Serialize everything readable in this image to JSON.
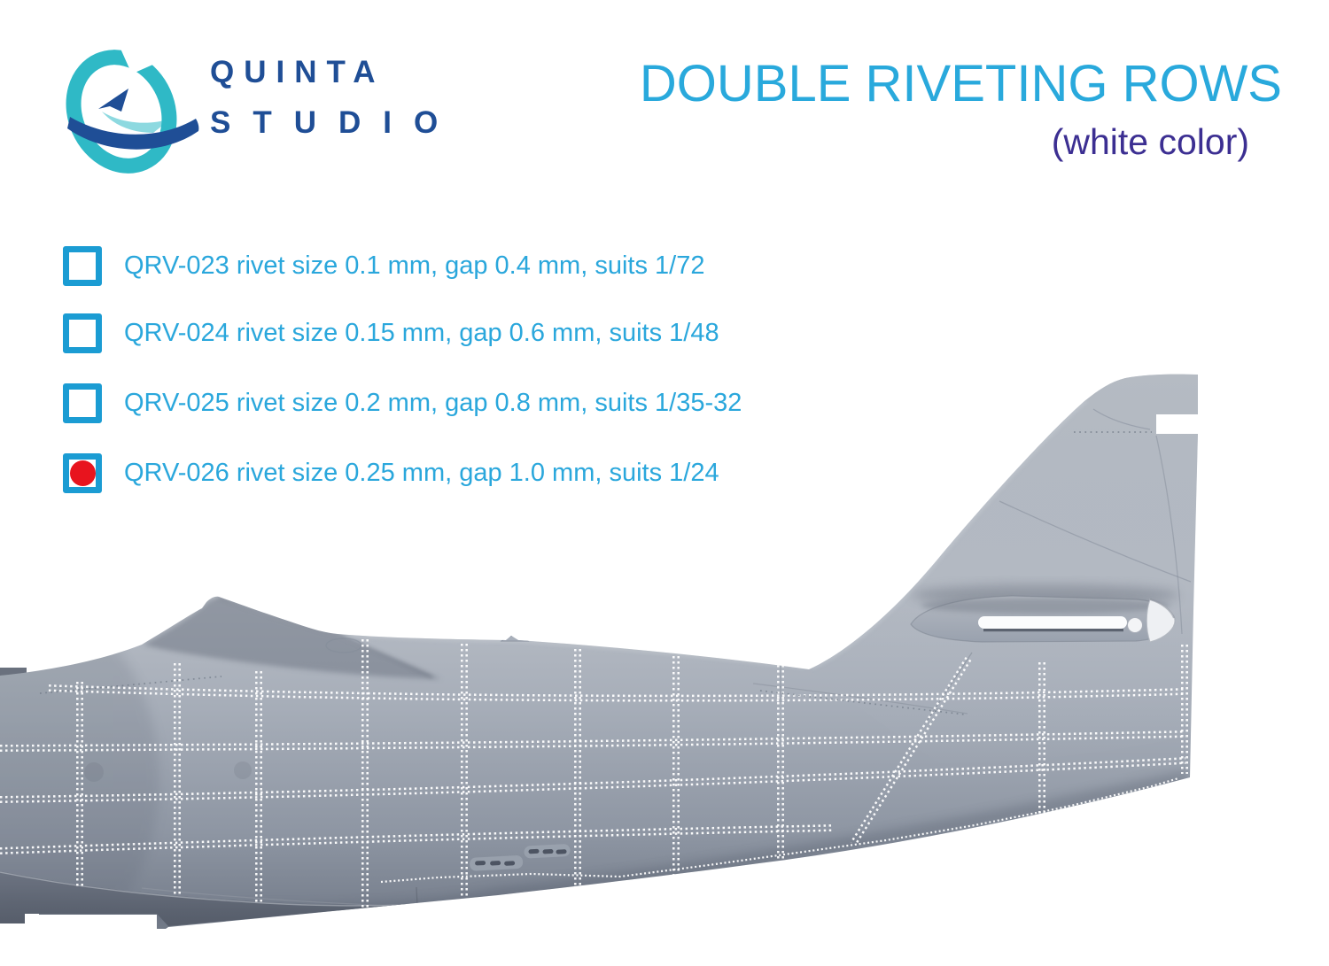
{
  "brand": {
    "name_line1": "QUINTA",
    "name_line2": "STUDIO",
    "logo_teal": "#2FB9C6",
    "logo_blue": "#1F4E96"
  },
  "header": {
    "title": "DOUBLE RIVETING ROWS",
    "subtitle": "(white color)",
    "title_color": "#29A9DC",
    "subtitle_color": "#3C2F92"
  },
  "products": [
    {
      "sku": "QRV-023",
      "label": "QRV-023 rivet size 0.1 mm, gap 0.4 mm, suits 1/72",
      "checked": false
    },
    {
      "sku": "QRV-024",
      "label": "QRV-024 rivet size 0.15 mm, gap 0.6 mm, suits 1/48",
      "checked": false
    },
    {
      "sku": "QRV-025",
      "label": "QRV-025 rivet size 0.2 mm, gap 0.8 mm, suits 1/35-32",
      "checked": false
    },
    {
      "sku": "QRV-026",
      "label": "QRV-026 rivet size 0.25 mm, gap 1.0 mm, suits 1/24",
      "checked": true
    }
  ],
  "checkbox": {
    "border_color": "#1B9CD3",
    "checked_dot_color": "#E8141E"
  },
  "illustration": {
    "description": "Aircraft rear fuselage and tail fin, side view, with white double riveting rows",
    "body_color": "#A9B0BB",
    "rivet_color": "#FFFFFF"
  }
}
